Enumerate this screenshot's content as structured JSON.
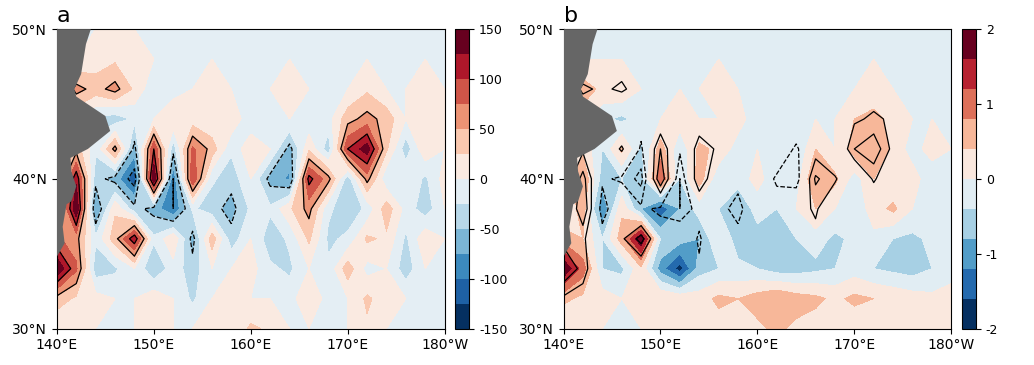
{
  "chart_data": [
    {
      "type": "contour",
      "title": "a",
      "color": "RdBu_r",
      "x": [
        140,
        142,
        144,
        146,
        148,
        150,
        152,
        154,
        156,
        158,
        160,
        162,
        164,
        166,
        168,
        170,
        172,
        174,
        176,
        178,
        180
      ],
      "y": [
        30,
        32,
        34,
        36,
        38,
        40,
        42,
        44,
        46,
        48,
        50
      ],
      "values": [
        [
          0,
          20,
          0,
          0,
          0,
          10,
          0,
          0,
          10,
          0,
          30,
          20,
          0,
          0,
          0,
          0,
          20,
          0,
          0,
          0,
          0
        ],
        [
          40,
          20,
          10,
          0,
          0,
          20,
          0,
          -30,
          0,
          20,
          0,
          0,
          -10,
          20,
          -10,
          0,
          30,
          10,
          0,
          -20,
          0
        ],
        [
          150,
          80,
          -40,
          -30,
          0,
          -50,
          -10,
          -40,
          0,
          0,
          10,
          -20,
          -30,
          0,
          -20,
          40,
          -10,
          0,
          -40,
          0,
          0
        ],
        [
          80,
          60,
          -20,
          40,
          120,
          -20,
          20,
          -60,
          40,
          -40,
          0,
          -40,
          -20,
          30,
          -30,
          -20,
          30,
          20,
          -30,
          20,
          0
        ],
        [
          0,
          150,
          -80,
          20,
          -40,
          -60,
          -100,
          -20,
          -40,
          -60,
          -20,
          -20,
          20,
          60,
          -20,
          -40,
          -20,
          40,
          -10,
          -40,
          0
        ],
        [
          0,
          120,
          -40,
          -60,
          -120,
          150,
          -100,
          100,
          -20,
          -40,
          0,
          -60,
          -80,
          110,
          60,
          -40,
          60,
          -20,
          0,
          -30,
          10
        ],
        [
          0,
          40,
          -20,
          60,
          -60,
          100,
          -40,
          80,
          40,
          -20,
          20,
          0,
          -60,
          20,
          -40,
          100,
          140,
          30,
          -40,
          20,
          0
        ],
        [
          0,
          0,
          -30,
          -40,
          -20,
          0,
          20,
          10,
          0,
          20,
          -20,
          0,
          0,
          -20,
          -10,
          40,
          60,
          40,
          0,
          10,
          0
        ],
        [
          0,
          60,
          40,
          60,
          20,
          -20,
          -10,
          0,
          20,
          0,
          -20,
          0,
          10,
          0,
          0,
          0,
          20,
          0,
          0,
          10,
          0
        ],
        [
          0,
          0,
          10,
          20,
          10,
          0,
          0,
          0,
          0,
          0,
          -10,
          0,
          0,
          0,
          0,
          0,
          0,
          0,
          0,
          0,
          0
        ],
        [
          0,
          0,
          0,
          0,
          0,
          0,
          0,
          0,
          0,
          0,
          0,
          0,
          0,
          0,
          0,
          0,
          0,
          0,
          0,
          0,
          0
        ]
      ],
      "contour_values": [
        [
          0,
          20,
          0,
          0,
          0,
          10,
          0,
          0,
          10,
          0,
          30,
          20,
          0,
          0,
          0,
          0,
          20,
          0,
          0,
          0,
          0
        ],
        [
          40,
          20,
          10,
          0,
          0,
          20,
          0,
          -30,
          0,
          20,
          0,
          0,
          -10,
          20,
          -10,
          0,
          30,
          10,
          0,
          -20,
          0
        ],
        [
          150,
          80,
          -40,
          -30,
          0,
          -50,
          -10,
          -40,
          0,
          0,
          10,
          -20,
          -30,
          0,
          -20,
          40,
          -10,
          0,
          -40,
          0,
          0
        ],
        [
          80,
          60,
          -20,
          40,
          120,
          -20,
          20,
          -60,
          40,
          -40,
          0,
          -40,
          -20,
          30,
          -30,
          -20,
          30,
          20,
          -30,
          20,
          0
        ],
        [
          0,
          150,
          -80,
          20,
          -40,
          -60,
          -100,
          -20,
          -40,
          -60,
          -20,
          -20,
          20,
          60,
          -20,
          -40,
          -20,
          40,
          -10,
          -40,
          0
        ],
        [
          0,
          120,
          -40,
          -60,
          -120,
          150,
          -100,
          100,
          -20,
          -40,
          0,
          -60,
          -80,
          110,
          60,
          -40,
          60,
          -20,
          0,
          -30,
          10
        ],
        [
          0,
          40,
          -20,
          60,
          -60,
          100,
          -40,
          80,
          40,
          -20,
          20,
          0,
          -60,
          20,
          -40,
          100,
          140,
          30,
          -40,
          20,
          0
        ],
        [
          0,
          0,
          -30,
          -40,
          -20,
          0,
          20,
          10,
          0,
          20,
          -20,
          0,
          0,
          -20,
          -10,
          40,
          60,
          40,
          0,
          10,
          0
        ],
        [
          0,
          60,
          40,
          60,
          20,
          -20,
          -10,
          0,
          20,
          0,
          -20,
          0,
          10,
          0,
          0,
          0,
          20,
          0,
          0,
          10,
          0
        ],
        [
          0,
          0,
          10,
          20,
          10,
          0,
          0,
          0,
          0,
          0,
          -10,
          0,
          0,
          0,
          0,
          0,
          0,
          0,
          0,
          0,
          0
        ],
        [
          0,
          0,
          0,
          0,
          0,
          0,
          0,
          0,
          0,
          0,
          0,
          0,
          0,
          0,
          0,
          0,
          0,
          0,
          0,
          0,
          0
        ]
      ],
      "contour_levels": [
        -100,
        -50,
        50,
        100
      ],
      "colorbar_levels": [
        -150,
        -125,
        -100,
        -75,
        -50,
        -25,
        0,
        25,
        50,
        75,
        100,
        125,
        150
      ],
      "colorbar_ticks": [
        -150,
        -100,
        -50,
        0,
        50,
        100,
        150
      ],
      "xlim": [
        140,
        180
      ],
      "ylim": [
        30,
        50
      ],
      "xticks": [
        {
          "value": 140,
          "label": "140°E"
        },
        {
          "value": 150,
          "label": "150°E"
        },
        {
          "value": 160,
          "label": "160°E"
        },
        {
          "value": 170,
          "label": "170°E"
        },
        {
          "value": 180,
          "label": "180°W"
        }
      ],
      "yticks": [
        {
          "value": 30,
          "label": "30°N"
        },
        {
          "value": 40,
          "label": "40°N"
        },
        {
          "value": 50,
          "label": "50°N"
        }
      ],
      "land": [
        [
          140,
          34.8
        ],
        [
          140.8,
          35.7
        ],
        [
          140.6,
          36.8
        ],
        [
          141,
          38.3
        ],
        [
          141.5,
          38.5
        ],
        [
          142,
          39.5
        ],
        [
          141.5,
          40.5
        ],
        [
          141.4,
          41.4
        ],
        [
          143.2,
          42
        ],
        [
          145.5,
          43.2
        ],
        [
          145,
          44.2
        ],
        [
          142,
          45.5
        ],
        [
          141.8,
          46
        ],
        [
          142.5,
          47
        ],
        [
          143,
          49
        ],
        [
          143.5,
          50
        ],
        [
          140,
          50
        ]
      ]
    },
    {
      "type": "contour",
      "title": "b",
      "color": "RdBu_r",
      "x": [
        140,
        142,
        144,
        146,
        148,
        150,
        152,
        154,
        156,
        158,
        160,
        162,
        164,
        166,
        168,
        170,
        172,
        174,
        176,
        178,
        180
      ],
      "y": [
        30,
        32,
        34,
        36,
        38,
        40,
        42,
        44,
        46,
        48,
        50
      ],
      "values": [
        [
          0,
          0.2,
          0,
          -0.1,
          0,
          0.2,
          0,
          0,
          0.2,
          0,
          0.3,
          0.5,
          0.3,
          0.2,
          0.1,
          0.1,
          0.3,
          0.2,
          0,
          0,
          0
        ],
        [
          0.5,
          0.3,
          0.2,
          0,
          0.2,
          0.4,
          0.3,
          0.2,
          0.5,
          0.4,
          0.6,
          0.8,
          0.6,
          0.5,
          0.3,
          0.5,
          0.4,
          0.3,
          0.2,
          0.1,
          0.3
        ],
        [
          2.0,
          1.0,
          -0.4,
          -0.5,
          0.3,
          -1.0,
          -1.8,
          -0.6,
          -0.4,
          -0.3,
          -0.4,
          -0.6,
          -0.6,
          -0.5,
          -0.4,
          -0.2,
          -0.4,
          -0.5,
          -0.6,
          -0.4,
          -0.3
        ],
        [
          0.6,
          0.4,
          -0.4,
          0.6,
          2.0,
          -0.4,
          -0.6,
          -0.8,
          0,
          -0.6,
          -0.5,
          -0.6,
          -0.4,
          -0.2,
          -0.5,
          -0.3,
          -0.1,
          -0.4,
          -0.5,
          -0.3,
          -0.4
        ],
        [
          0,
          0.6,
          -1.2,
          0.3,
          -0.8,
          -1.5,
          -0.8,
          -0.2,
          -0.4,
          -0.6,
          -0.3,
          -0.4,
          0,
          0.4,
          0,
          -0.3,
          0.2,
          0.5,
          0,
          -0.3,
          0
        ],
        [
          0,
          0.8,
          -0.6,
          -0.4,
          -0.6,
          1.2,
          -0.4,
          0.6,
          -0.3,
          -0.3,
          0.2,
          -0.4,
          -0.2,
          0.8,
          0.5,
          -0.2,
          0.4,
          0,
          0.2,
          -0.3,
          0
        ],
        [
          0,
          0.3,
          -0.4,
          0.5,
          -0.5,
          0.6,
          -0.3,
          0.5,
          0.3,
          -0.2,
          0,
          -0.3,
          -0.4,
          0.4,
          0,
          0.6,
          0.8,
          0.3,
          -0.2,
          0.2,
          0
        ],
        [
          0,
          0.2,
          -0.3,
          -0.5,
          -0.2,
          0,
          0.2,
          0,
          0,
          0.2,
          -0.3,
          0,
          0,
          0,
          0,
          0.4,
          0.5,
          0.3,
          0,
          0,
          0
        ],
        [
          0,
          0.6,
          0.3,
          0.4,
          0,
          0,
          0,
          0,
          0.2,
          0,
          0,
          0,
          0,
          0,
          0,
          0,
          0.2,
          0,
          0,
          0,
          0
        ],
        [
          0,
          0,
          0,
          0,
          0,
          0,
          0,
          0,
          0,
          0,
          0,
          0,
          0,
          0,
          0,
          0,
          0,
          0,
          0,
          0,
          0
        ],
        [
          0,
          0,
          0,
          0,
          0,
          0,
          0,
          0,
          0,
          0,
          0,
          0,
          0,
          0,
          0,
          0,
          0,
          0,
          0,
          0,
          0
        ]
      ],
      "contour_values": [
        [
          0,
          20,
          0,
          0,
          0,
          10,
          0,
          0,
          10,
          0,
          30,
          20,
          0,
          0,
          0,
          0,
          20,
          0,
          0,
          0,
          0
        ],
        [
          40,
          20,
          10,
          0,
          0,
          20,
          0,
          -30,
          0,
          20,
          0,
          0,
          -10,
          20,
          -10,
          0,
          30,
          10,
          0,
          -20,
          0
        ],
        [
          150,
          80,
          -40,
          -30,
          0,
          -50,
          -10,
          -40,
          0,
          0,
          10,
          -20,
          -30,
          0,
          -20,
          40,
          -10,
          0,
          -40,
          0,
          0
        ],
        [
          80,
          60,
          -20,
          40,
          120,
          -20,
          20,
          -60,
          40,
          -40,
          0,
          -40,
          -20,
          30,
          -30,
          -20,
          30,
          20,
          -30,
          20,
          0
        ],
        [
          0,
          150,
          -80,
          20,
          -40,
          -60,
          -100,
          -20,
          -40,
          -60,
          -20,
          -20,
          20,
          60,
          -20,
          -40,
          -20,
          40,
          -10,
          -40,
          0
        ],
        [
          0,
          120,
          -40,
          -60,
          -120,
          150,
          -100,
          100,
          -20,
          -40,
          0,
          -60,
          -80,
          110,
          60,
          -40,
          60,
          -20,
          0,
          -30,
          10
        ],
        [
          0,
          40,
          -20,
          60,
          -60,
          100,
          -40,
          80,
          40,
          -20,
          20,
          0,
          -60,
          20,
          -40,
          100,
          140,
          30,
          -40,
          20,
          0
        ],
        [
          0,
          0,
          -30,
          -40,
          -20,
          0,
          20,
          10,
          0,
          20,
          -20,
          0,
          0,
          -20,
          -10,
          40,
          60,
          40,
          0,
          10,
          0
        ],
        [
          0,
          60,
          40,
          60,
          20,
          -20,
          -10,
          0,
          20,
          0,
          -20,
          0,
          10,
          0,
          0,
          0,
          20,
          0,
          0,
          10,
          0
        ],
        [
          0,
          0,
          10,
          20,
          10,
          0,
          0,
          0,
          0,
          0,
          -10,
          0,
          0,
          0,
          0,
          0,
          0,
          0,
          0,
          0,
          0
        ],
        [
          0,
          0,
          0,
          0,
          0,
          0,
          0,
          0,
          0,
          0,
          0,
          0,
          0,
          0,
          0,
          0,
          0,
          0,
          0,
          0,
          0
        ]
      ],
      "contour_levels": [
        -100,
        -50,
        50,
        100
      ],
      "colorbar_levels": [
        -2,
        -1.6,
        -1.2,
        -0.8,
        -0.4,
        0,
        0.4,
        0.8,
        1.2,
        1.6,
        2
      ],
      "colorbar_ticks": [
        -2,
        -1,
        0,
        1,
        2
      ],
      "xlim": [
        140,
        180
      ],
      "ylim": [
        30,
        50
      ],
      "xticks": [
        {
          "value": 140,
          "label": "140°E"
        },
        {
          "value": 150,
          "label": "150°E"
        },
        {
          "value": 160,
          "label": "160°E"
        },
        {
          "value": 170,
          "label": "170°E"
        },
        {
          "value": 180,
          "label": "180°W"
        }
      ],
      "yticks": [
        {
          "value": 30,
          "label": "30°N"
        },
        {
          "value": 40,
          "label": "40°N"
        },
        {
          "value": 50,
          "label": "50°N"
        }
      ],
      "land": [
        [
          140,
          34.8
        ],
        [
          140.8,
          35.7
        ],
        [
          140.6,
          36.8
        ],
        [
          141,
          38.3
        ],
        [
          141.5,
          38.5
        ],
        [
          142,
          39.5
        ],
        [
          141.5,
          40.5
        ],
        [
          141.4,
          41.4
        ],
        [
          143.2,
          42
        ],
        [
          145.5,
          43.2
        ],
        [
          145,
          44.2
        ],
        [
          142,
          45.5
        ],
        [
          141.8,
          46
        ],
        [
          142.5,
          47
        ],
        [
          143,
          49
        ],
        [
          143.5,
          50
        ],
        [
          140,
          50
        ]
      ]
    }
  ]
}
